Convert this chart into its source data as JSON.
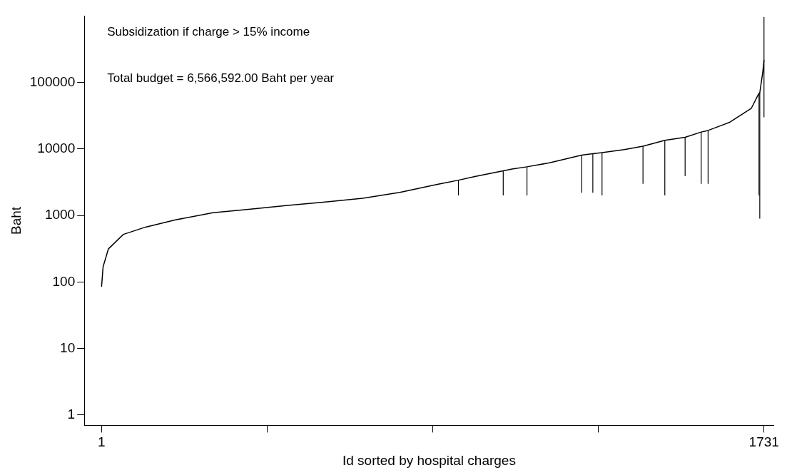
{
  "chart_data": {
    "type": "line",
    "xlabel": "Id sorted by hospital charges",
    "ylabel": "Baht",
    "log": "y",
    "grid": false,
    "legend": false,
    "marker": "none",
    "annotations": [
      "Subsidization if charge > 15% income",
      "Total budget = 6,566,592.00 Baht per year"
    ],
    "xlim": [
      -44,
      1757
    ],
    "xticks": [
      1,
      {
        "value": 433.5,
        "label": null
      },
      {
        "value": 866,
        "label": null
      },
      {
        "value": 1298.5,
        "label": null
      },
      1731
    ],
    "ylim": [
      0.7,
      1000000
    ],
    "yticks": [
      1,
      10,
      100,
      1000,
      10000,
      100000
    ],
    "series": [
      {
        "color": "#000000",
        "x": [
          1,
          5,
          19,
          58,
          116,
          194,
          292,
          390,
          487,
          585,
          683,
          780,
          878,
          933,
          976,
          1050,
          1073,
          1112,
          1171,
          1255,
          1269,
          1284,
          1308,
          1366,
          1415,
          1472,
          1525,
          1567,
          1585,
          1640,
          1698,
          1718,
          1720,
          1728,
          1731
        ],
        "values": [
          85,
          170,
          316,
          520,
          670,
          860,
          1100,
          1250,
          1420,
          1600,
          1820,
          2230,
          2940,
          3400,
          3860,
          4700,
          5000,
          5400,
          6200,
          8100,
          8300,
          8500,
          8800,
          9800,
          11000,
          13500,
          15000,
          18000,
          19000,
          25000,
          41000,
          69000,
          70000,
          146000,
          220000
        ],
        "errors": [
          null,
          null,
          null,
          null,
          null,
          null,
          null,
          null,
          null,
          null,
          null,
          null,
          null,
          [
            2000,
            3400
          ],
          null,
          [
            2000,
            4700
          ],
          null,
          [
            2000,
            5400
          ],
          null,
          [
            2200,
            8100
          ],
          null,
          [
            2200,
            8500
          ],
          [
            2000,
            8800
          ],
          null,
          [
            3000,
            11000
          ],
          [
            2000,
            13500
          ],
          [
            3900,
            15000
          ],
          [
            3000,
            18000
          ],
          [
            3000,
            19000
          ],
          null,
          null,
          [
            2000,
            69000
          ],
          [
            900,
            70000
          ],
          null,
          [
            30000,
            960000
          ]
        ]
      }
    ]
  }
}
